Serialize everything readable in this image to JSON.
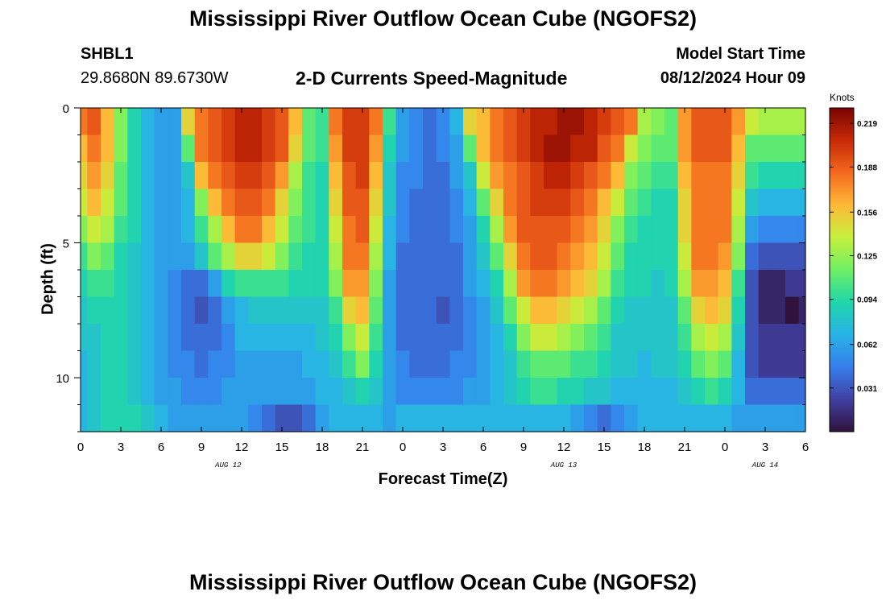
{
  "page_title": "Mississippi River Outflow Ocean Cube (NGOFS2)",
  "footer_title": "Mississippi River Outflow Ocean Cube (NGOFS2)",
  "station": "SHBL1",
  "coords": "29.8680N  89.6730W",
  "subtitle": "2-D Currents Speed-Magnitude",
  "start_label": "Model Start Time",
  "start_value": "08/12/2024 Hour 09",
  "chart_data": {
    "type": "heatmap",
    "title": "2-D Currents Speed-Magnitude",
    "xlabel": "Forecast Time(Z)",
    "ylabel": "Depth (ft)",
    "colorbar_label": "Knots",
    "x_tick_labels": [
      "0",
      "3",
      "6",
      "9",
      "12",
      "15",
      "18",
      "21",
      "0",
      "3",
      "6",
      "9",
      "12",
      "15",
      "18",
      "21",
      "0",
      "3",
      "6"
    ],
    "x_range_hours": [
      0,
      54
    ],
    "date_labels": [
      {
        "label": "AUG 12",
        "hour": 11
      },
      {
        "label": "AUG 13",
        "hour": 36
      },
      {
        "label": "AUG 14",
        "hour": 51
      }
    ],
    "y_tick_labels": [
      "0",
      "5",
      "10"
    ],
    "y_range_ft": [
      0,
      12
    ],
    "colorbar_ticks": [
      "0.219",
      "0.188",
      "0.156",
      "0.125",
      "0.094",
      "0.062",
      "0.031"
    ],
    "colorbar_range": [
      0,
      0.23
    ],
    "depth_levels_ft": [
      0.5,
      1.5,
      2.5,
      3.5,
      4.5,
      5.5,
      6.5,
      7.5,
      8.5,
      9.5,
      10.5,
      11.5
    ],
    "time_hours": [
      0,
      1,
      2,
      3,
      4,
      5,
      6,
      7,
      8,
      9,
      10,
      11,
      12,
      13,
      14,
      15,
      16,
      17,
      18,
      19,
      20,
      21,
      22,
      23,
      24,
      25,
      26,
      27,
      28,
      29,
      30,
      31,
      32,
      33,
      34,
      35,
      36,
      37,
      38,
      39,
      40,
      41,
      42,
      43,
      44,
      45,
      46,
      47,
      48,
      49,
      50,
      51,
      52,
      53,
      54
    ],
    "speed_knots": [
      [
        0.18,
        0.19,
        0.16,
        0.12,
        0.09,
        0.07,
        0.06,
        0.06,
        0.15,
        0.18,
        0.19,
        0.2,
        0.21,
        0.21,
        0.2,
        0.19,
        0.16,
        0.11,
        0.1,
        0.18,
        0.2,
        0.2,
        0.18,
        0.1,
        0.06,
        0.05,
        0.04,
        0.05,
        0.07,
        0.15,
        0.16,
        0.18,
        0.19,
        0.2,
        0.21,
        0.21,
        0.22,
        0.22,
        0.21,
        0.2,
        0.19,
        0.18,
        0.13,
        0.12,
        0.11,
        0.17,
        0.19,
        0.19,
        0.19,
        0.17,
        0.14,
        0.13,
        0.13,
        0.13,
        0.13
      ],
      [
        0.16,
        0.18,
        0.16,
        0.12,
        0.09,
        0.07,
        0.06,
        0.06,
        0.11,
        0.18,
        0.19,
        0.2,
        0.21,
        0.21,
        0.2,
        0.19,
        0.15,
        0.11,
        0.1,
        0.17,
        0.2,
        0.2,
        0.17,
        0.09,
        0.06,
        0.05,
        0.04,
        0.05,
        0.06,
        0.11,
        0.16,
        0.18,
        0.19,
        0.2,
        0.21,
        0.22,
        0.22,
        0.21,
        0.21,
        0.19,
        0.18,
        0.14,
        0.12,
        0.11,
        0.11,
        0.17,
        0.19,
        0.19,
        0.19,
        0.16,
        0.11,
        0.11,
        0.11,
        0.11,
        0.11
      ],
      [
        0.15,
        0.17,
        0.15,
        0.11,
        0.09,
        0.07,
        0.06,
        0.06,
        0.08,
        0.16,
        0.18,
        0.19,
        0.2,
        0.2,
        0.19,
        0.17,
        0.13,
        0.1,
        0.09,
        0.16,
        0.19,
        0.2,
        0.16,
        0.08,
        0.05,
        0.05,
        0.04,
        0.04,
        0.06,
        0.08,
        0.14,
        0.17,
        0.18,
        0.19,
        0.2,
        0.21,
        0.21,
        0.2,
        0.19,
        0.18,
        0.16,
        0.12,
        0.11,
        0.1,
        0.1,
        0.16,
        0.18,
        0.18,
        0.18,
        0.15,
        0.1,
        0.09,
        0.09,
        0.09,
        0.09
      ],
      [
        0.14,
        0.16,
        0.14,
        0.11,
        0.09,
        0.07,
        0.06,
        0.06,
        0.07,
        0.12,
        0.16,
        0.18,
        0.19,
        0.19,
        0.18,
        0.15,
        0.12,
        0.1,
        0.09,
        0.15,
        0.19,
        0.19,
        0.15,
        0.08,
        0.05,
        0.04,
        0.04,
        0.04,
        0.05,
        0.07,
        0.11,
        0.15,
        0.18,
        0.19,
        0.2,
        0.2,
        0.2,
        0.19,
        0.18,
        0.16,
        0.14,
        0.11,
        0.1,
        0.09,
        0.09,
        0.15,
        0.18,
        0.18,
        0.18,
        0.14,
        0.08,
        0.07,
        0.07,
        0.07,
        0.07
      ],
      [
        0.12,
        0.14,
        0.13,
        0.1,
        0.09,
        0.07,
        0.06,
        0.06,
        0.07,
        0.1,
        0.13,
        0.16,
        0.18,
        0.18,
        0.16,
        0.14,
        0.11,
        0.1,
        0.09,
        0.14,
        0.18,
        0.19,
        0.14,
        0.07,
        0.05,
        0.04,
        0.04,
        0.04,
        0.05,
        0.06,
        0.09,
        0.13,
        0.17,
        0.19,
        0.19,
        0.19,
        0.19,
        0.18,
        0.17,
        0.15,
        0.12,
        0.1,
        0.09,
        0.09,
        0.09,
        0.15,
        0.18,
        0.18,
        0.18,
        0.13,
        0.06,
        0.05,
        0.05,
        0.05,
        0.05
      ],
      [
        0.1,
        0.12,
        0.11,
        0.09,
        0.08,
        0.07,
        0.06,
        0.06,
        0.06,
        0.08,
        0.11,
        0.13,
        0.15,
        0.15,
        0.14,
        0.12,
        0.1,
        0.09,
        0.09,
        0.13,
        0.18,
        0.18,
        0.13,
        0.07,
        0.04,
        0.04,
        0.04,
        0.04,
        0.04,
        0.06,
        0.08,
        0.11,
        0.15,
        0.18,
        0.19,
        0.19,
        0.18,
        0.17,
        0.16,
        0.14,
        0.11,
        0.09,
        0.09,
        0.09,
        0.09,
        0.14,
        0.18,
        0.18,
        0.17,
        0.12,
        0.04,
        0.03,
        0.03,
        0.03,
        0.03
      ],
      [
        0.09,
        0.1,
        0.1,
        0.09,
        0.08,
        0.07,
        0.06,
        0.05,
        0.04,
        0.04,
        0.06,
        0.09,
        0.1,
        0.1,
        0.1,
        0.1,
        0.09,
        0.09,
        0.09,
        0.12,
        0.17,
        0.17,
        0.12,
        0.06,
        0.04,
        0.04,
        0.04,
        0.04,
        0.04,
        0.06,
        0.07,
        0.09,
        0.13,
        0.17,
        0.18,
        0.18,
        0.17,
        0.16,
        0.15,
        0.13,
        0.1,
        0.09,
        0.09,
        0.08,
        0.09,
        0.13,
        0.17,
        0.17,
        0.16,
        0.1,
        0.03,
        0.01,
        0.01,
        0.02,
        0.02
      ],
      [
        0.08,
        0.09,
        0.09,
        0.09,
        0.08,
        0.07,
        0.06,
        0.05,
        0.04,
        0.03,
        0.04,
        0.06,
        0.07,
        0.08,
        0.08,
        0.08,
        0.08,
        0.08,
        0.08,
        0.1,
        0.15,
        0.16,
        0.11,
        0.06,
        0.04,
        0.04,
        0.04,
        0.03,
        0.04,
        0.05,
        0.06,
        0.08,
        0.11,
        0.14,
        0.16,
        0.16,
        0.15,
        0.14,
        0.13,
        0.11,
        0.09,
        0.08,
        0.08,
        0.08,
        0.08,
        0.11,
        0.15,
        0.16,
        0.15,
        0.09,
        0.03,
        0.01,
        0.01,
        0.0,
        0.01
      ],
      [
        0.08,
        0.08,
        0.09,
        0.09,
        0.08,
        0.07,
        0.06,
        0.05,
        0.04,
        0.04,
        0.04,
        0.05,
        0.07,
        0.07,
        0.07,
        0.07,
        0.07,
        0.07,
        0.08,
        0.09,
        0.12,
        0.14,
        0.1,
        0.06,
        0.04,
        0.04,
        0.04,
        0.04,
        0.04,
        0.05,
        0.06,
        0.07,
        0.09,
        0.12,
        0.14,
        0.14,
        0.13,
        0.12,
        0.11,
        0.1,
        0.08,
        0.08,
        0.08,
        0.08,
        0.08,
        0.1,
        0.13,
        0.14,
        0.13,
        0.08,
        0.03,
        0.02,
        0.02,
        0.02,
        0.02
      ],
      [
        0.07,
        0.08,
        0.09,
        0.09,
        0.08,
        0.07,
        0.06,
        0.05,
        0.05,
        0.04,
        0.05,
        0.05,
        0.06,
        0.06,
        0.06,
        0.06,
        0.06,
        0.07,
        0.07,
        0.08,
        0.1,
        0.12,
        0.09,
        0.06,
        0.05,
        0.04,
        0.04,
        0.04,
        0.05,
        0.05,
        0.06,
        0.07,
        0.08,
        0.1,
        0.11,
        0.11,
        0.11,
        0.1,
        0.1,
        0.09,
        0.08,
        0.08,
        0.07,
        0.08,
        0.08,
        0.09,
        0.11,
        0.12,
        0.11,
        0.07,
        0.03,
        0.02,
        0.02,
        0.02,
        0.02
      ],
      [
        0.07,
        0.08,
        0.09,
        0.09,
        0.08,
        0.07,
        0.06,
        0.06,
        0.05,
        0.05,
        0.05,
        0.06,
        0.06,
        0.06,
        0.06,
        0.06,
        0.06,
        0.06,
        0.07,
        0.07,
        0.08,
        0.09,
        0.08,
        0.06,
        0.05,
        0.05,
        0.05,
        0.05,
        0.05,
        0.06,
        0.06,
        0.07,
        0.08,
        0.09,
        0.1,
        0.1,
        0.09,
        0.09,
        0.08,
        0.08,
        0.07,
        0.07,
        0.07,
        0.07,
        0.07,
        0.08,
        0.09,
        0.1,
        0.09,
        0.07,
        0.04,
        0.04,
        0.04,
        0.04,
        0.04
      ],
      [
        0.07,
        0.08,
        0.09,
        0.09,
        0.09,
        0.08,
        0.07,
        0.06,
        0.06,
        0.06,
        0.06,
        0.06,
        0.06,
        0.05,
        0.04,
        0.03,
        0.03,
        0.04,
        0.06,
        0.07,
        0.07,
        0.07,
        0.07,
        0.06,
        0.07,
        0.07,
        0.07,
        0.07,
        0.07,
        0.07,
        0.07,
        0.07,
        0.07,
        0.07,
        0.07,
        0.07,
        0.07,
        0.06,
        0.05,
        0.04,
        0.05,
        0.06,
        0.07,
        0.07,
        0.07,
        0.07,
        0.07,
        0.07,
        0.07,
        0.06,
        0.06,
        0.06,
        0.06,
        0.06,
        0.06
      ]
    ]
  }
}
